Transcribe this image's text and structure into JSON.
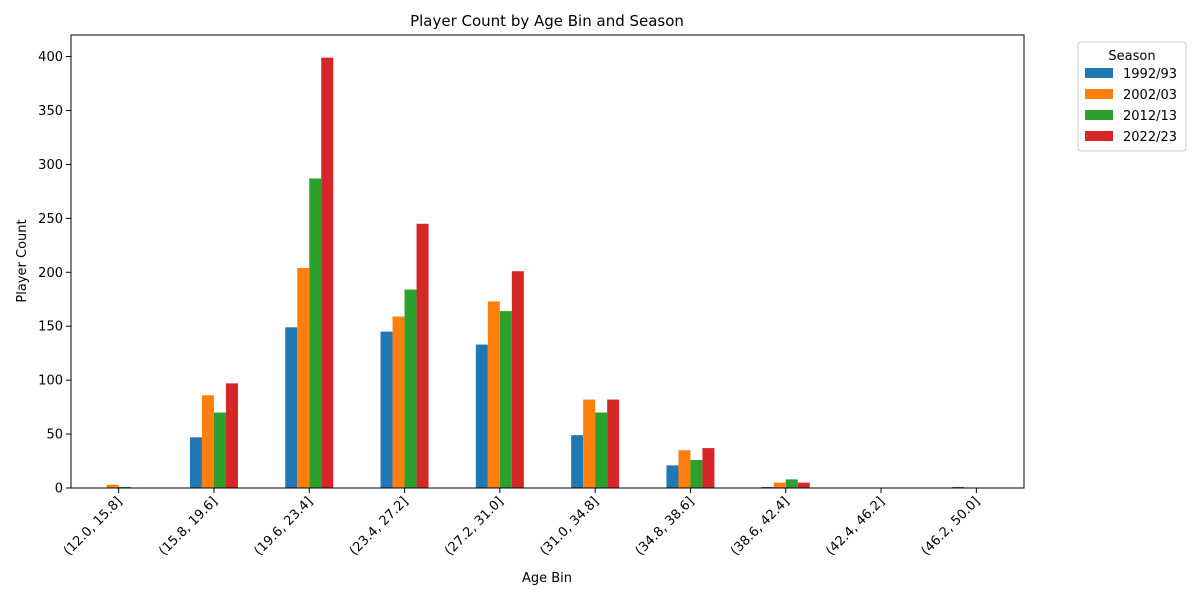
{
  "chart_data": {
    "type": "bar",
    "title": "Player Count by Age Bin and Season",
    "xlabel": "Age Bin",
    "ylabel": "Player Count",
    "ylim": [
      0,
      420
    ],
    "yticks": [
      0,
      50,
      100,
      150,
      200,
      250,
      300,
      350,
      400
    ],
    "grid": false,
    "legend": {
      "title": "Season",
      "placement": "outside-top-right"
    },
    "categories": [
      "(12.0, 15.8]",
      "(15.8, 19.6]",
      "(19.6, 23.4]",
      "(23.4, 27.2]",
      "(27.2, 31.0]",
      "(31.0, 34.8]",
      "(34.8, 38.6]",
      "(38.6, 42.4]",
      "(42.4, 46.2]",
      "(46.2, 50.0]"
    ],
    "series": [
      {
        "name": "1992/93",
        "color": "#1f77b4",
        "values": [
          0,
          47,
          149,
          145,
          133,
          49,
          21,
          1,
          0,
          1
        ]
      },
      {
        "name": "2002/03",
        "color": "#ff7f0e",
        "values": [
          3,
          86,
          204,
          159,
          173,
          82,
          35,
          5,
          0,
          0
        ]
      },
      {
        "name": "2012/13",
        "color": "#2ca02c",
        "values": [
          1,
          70,
          287,
          184,
          164,
          70,
          26,
          8,
          0,
          0
        ]
      },
      {
        "name": "2022/23",
        "color": "#d62728",
        "values": [
          0,
          97,
          399,
          245,
          201,
          82,
          37,
          5,
          0,
          0
        ]
      }
    ]
  }
}
